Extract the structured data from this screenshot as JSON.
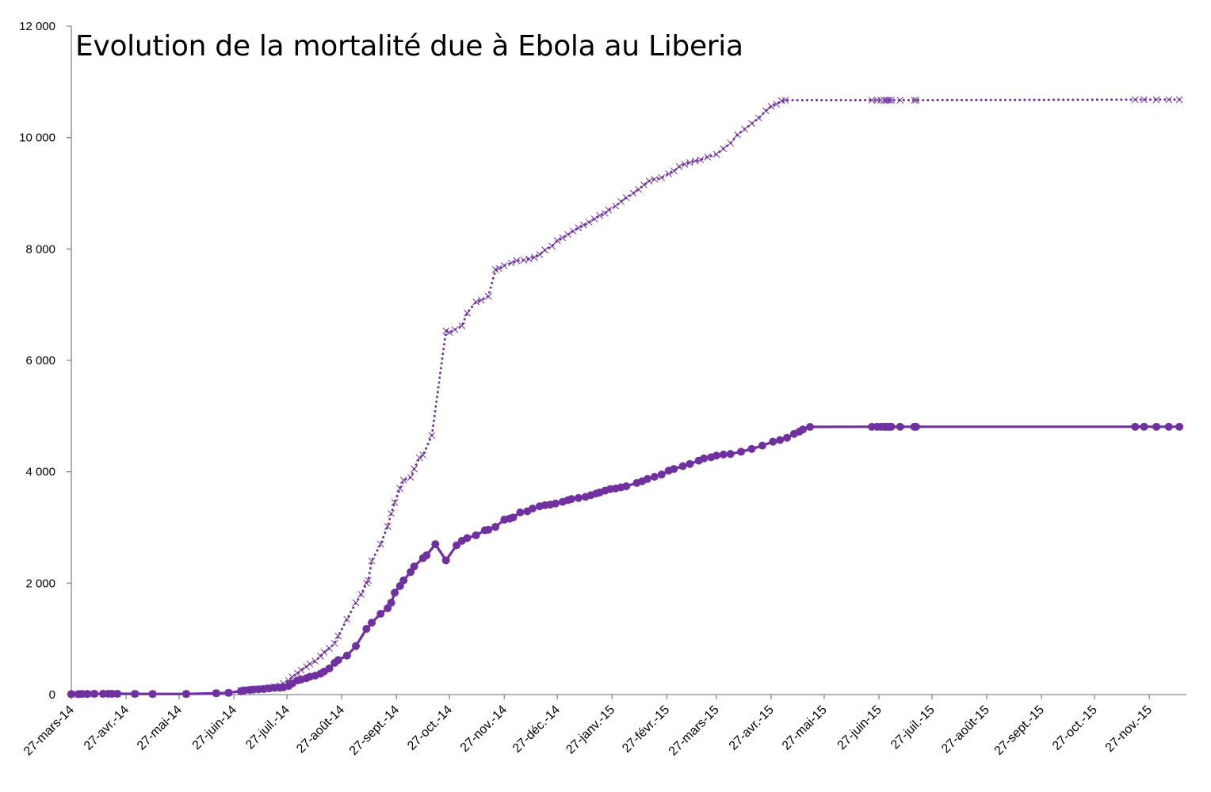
{
  "chart_data": {
    "type": "line",
    "title": "Evolution de la mortalité due à Ebola au Liberia",
    "xlabel": "",
    "ylabel": "",
    "ylim": [
      0,
      12000
    ],
    "yticks": [
      0,
      2000,
      4000,
      6000,
      8000,
      10000,
      12000
    ],
    "ytick_labels": [
      "0",
      "2 000",
      "4 000",
      "6 000",
      "8 000",
      "10 000",
      "12 000"
    ],
    "xlim": [
      "2014-03-27",
      "2015-12-18"
    ],
    "xticks": [
      "2014-03-27",
      "2014-04-27",
      "2014-05-27",
      "2014-06-27",
      "2014-07-27",
      "2014-08-27",
      "2014-09-27",
      "2014-10-27",
      "2014-11-27",
      "2014-12-27",
      "2015-01-27",
      "2015-02-27",
      "2015-03-27",
      "2015-04-27",
      "2015-05-27",
      "2015-06-27",
      "2015-07-27",
      "2015-08-27",
      "2015-09-27",
      "2015-10-27",
      "2015-11-27"
    ],
    "xtick_labels": [
      "27-mars-14",
      "27-avr.-14",
      "27-mai-14",
      "27-juin-14",
      "27-juil.-14",
      "27-août-14",
      "27-sept.-14",
      "27-oct.-14",
      "27-nov.-14",
      "27-déc.-14",
      "27-janv.-15",
      "27-févr.-15",
      "27-mars-15",
      "27-avr.-15",
      "27-mai-15",
      "27-juin-15",
      "27-juil.-15",
      "27-août-15",
      "27-sept.-15",
      "27-oct.-15",
      "27-nov.-15"
    ],
    "grid": false,
    "legend": "none",
    "series": [
      {
        "style": "dotted-x",
        "color": "#7030A0",
        "points": [
          [
            "2014-03-27",
            8
          ],
          [
            "2014-03-31",
            8
          ],
          [
            "2014-04-02",
            12
          ],
          [
            "2014-04-05",
            12
          ],
          [
            "2014-04-09",
            14
          ],
          [
            "2014-04-14",
            14
          ],
          [
            "2014-04-17",
            15
          ],
          [
            "2014-04-19",
            15
          ],
          [
            "2014-04-22",
            15
          ],
          [
            "2014-05-02",
            13
          ],
          [
            "2014-05-12",
            11
          ],
          [
            "2014-05-31",
            12
          ],
          [
            "2014-06-17",
            24
          ],
          [
            "2014-06-24",
            32
          ],
          [
            "2014-07-01",
            75
          ],
          [
            "2014-07-03",
            86
          ],
          [
            "2014-07-06",
            90
          ],
          [
            "2014-07-08",
            100
          ],
          [
            "2014-07-11",
            105
          ],
          [
            "2014-07-14",
            120
          ],
          [
            "2014-07-17",
            130
          ],
          [
            "2014-07-20",
            140
          ],
          [
            "2014-07-23",
            160
          ],
          [
            "2014-07-25",
            200
          ],
          [
            "2014-07-28",
            250
          ],
          [
            "2014-07-30",
            320
          ],
          [
            "2014-08-02",
            380
          ],
          [
            "2014-08-04",
            440
          ],
          [
            "2014-08-07",
            500
          ],
          [
            "2014-08-09",
            550
          ],
          [
            "2014-08-12",
            600
          ],
          [
            "2014-08-15",
            690
          ],
          [
            "2014-08-17",
            760
          ],
          [
            "2014-08-20",
            830
          ],
          [
            "2014-08-23",
            920
          ],
          [
            "2014-08-25",
            1050
          ],
          [
            "2014-08-30",
            1350
          ],
          [
            "2014-09-04",
            1650
          ],
          [
            "2014-09-07",
            1800
          ],
          [
            "2014-09-10",
            2000
          ],
          [
            "2014-09-11",
            2050
          ],
          [
            "2014-09-13",
            2400
          ],
          [
            "2014-09-18",
            2700
          ],
          [
            "2014-09-22",
            3020
          ],
          [
            "2014-09-24",
            3250
          ],
          [
            "2014-09-26",
            3450
          ],
          [
            "2014-09-29",
            3700
          ],
          [
            "2014-10-01",
            3850
          ],
          [
            "2014-10-05",
            3900
          ],
          [
            "2014-10-07",
            4050
          ],
          [
            "2014-10-10",
            4250
          ],
          [
            "2014-10-12",
            4300
          ],
          [
            "2014-10-17",
            4650
          ],
          [
            "2014-10-25",
            6530
          ],
          [
            "2014-10-27",
            6500
          ],
          [
            "2014-10-30",
            6550
          ],
          [
            "2014-11-03",
            6620
          ],
          [
            "2014-11-06",
            6850
          ],
          [
            "2014-11-11",
            7050
          ],
          [
            "2014-11-14",
            7080
          ],
          [
            "2014-11-18",
            7150
          ],
          [
            "2014-11-22",
            7630
          ],
          [
            "2014-11-24",
            7650
          ],
          [
            "2014-11-27",
            7700
          ],
          [
            "2014-12-01",
            7750
          ],
          [
            "2014-12-04",
            7790
          ],
          [
            "2014-12-08",
            7800
          ],
          [
            "2014-12-11",
            7820
          ],
          [
            "2014-12-14",
            7850
          ],
          [
            "2014-12-17",
            7900
          ],
          [
            "2014-12-20",
            7980
          ],
          [
            "2014-12-24",
            8050
          ],
          [
            "2014-12-27",
            8150
          ],
          [
            "2014-12-30",
            8200
          ],
          [
            "2015-01-02",
            8260
          ],
          [
            "2015-01-05",
            8320
          ],
          [
            "2015-01-08",
            8380
          ],
          [
            "2015-01-11",
            8430
          ],
          [
            "2015-01-14",
            8480
          ],
          [
            "2015-01-17",
            8540
          ],
          [
            "2015-01-20",
            8600
          ],
          [
            "2015-01-23",
            8640
          ],
          [
            "2015-01-25",
            8700
          ],
          [
            "2015-01-29",
            8770
          ],
          [
            "2015-02-01",
            8850
          ],
          [
            "2015-02-04",
            8920
          ],
          [
            "2015-02-08",
            9000
          ],
          [
            "2015-02-11",
            9070
          ],
          [
            "2015-02-14",
            9150
          ],
          [
            "2015-02-17",
            9220
          ],
          [
            "2015-02-20",
            9250
          ],
          [
            "2015-02-24",
            9280
          ],
          [
            "2015-02-28",
            9350
          ],
          [
            "2015-03-03",
            9400
          ],
          [
            "2015-03-06",
            9480
          ],
          [
            "2015-03-09",
            9520
          ],
          [
            "2015-03-12",
            9550
          ],
          [
            "2015-03-15",
            9580
          ],
          [
            "2015-03-18",
            9600
          ],
          [
            "2015-03-22",
            9650
          ],
          [
            "2015-03-27",
            9700
          ],
          [
            "2015-03-31",
            9800
          ],
          [
            "2015-04-04",
            9900
          ],
          [
            "2015-04-08",
            10050
          ],
          [
            "2015-04-12",
            10150
          ],
          [
            "2015-04-16",
            10250
          ],
          [
            "2015-04-20",
            10350
          ],
          [
            "2015-04-24",
            10480
          ],
          [
            "2015-04-27",
            10560
          ],
          [
            "2015-04-30",
            10600
          ],
          [
            "2015-05-03",
            10660
          ],
          [
            "2015-05-05",
            10670
          ],
          [
            "2015-06-23",
            10670
          ],
          [
            "2015-06-26",
            10670
          ],
          [
            "2015-06-28",
            10670
          ],
          [
            "2015-06-30",
            10670
          ],
          [
            "2015-07-01",
            10670
          ],
          [
            "2015-07-02",
            10670
          ],
          [
            "2015-07-03",
            10670
          ],
          [
            "2015-07-04",
            10670
          ],
          [
            "2015-07-09",
            10670
          ],
          [
            "2015-07-17",
            10670
          ],
          [
            "2015-07-18",
            10670
          ],
          [
            "2015-11-19",
            10680
          ],
          [
            "2015-11-24",
            10680
          ],
          [
            "2015-12-01",
            10680
          ],
          [
            "2015-12-08",
            10680
          ],
          [
            "2015-12-14",
            10680
          ]
        ]
      },
      {
        "style": "solid-circle",
        "color": "#7030A0",
        "points": [
          [
            "2014-03-27",
            8
          ],
          [
            "2014-03-31",
            8
          ],
          [
            "2014-04-02",
            12
          ],
          [
            "2014-04-05",
            12
          ],
          [
            "2014-04-09",
            14
          ],
          [
            "2014-04-14",
            14
          ],
          [
            "2014-04-17",
            15
          ],
          [
            "2014-04-19",
            15
          ],
          [
            "2014-04-22",
            15
          ],
          [
            "2014-05-02",
            13
          ],
          [
            "2014-05-12",
            11
          ],
          [
            "2014-05-31",
            12
          ],
          [
            "2014-06-17",
            24
          ],
          [
            "2014-06-24",
            32
          ],
          [
            "2014-07-01",
            60
          ],
          [
            "2014-07-03",
            75
          ],
          [
            "2014-07-06",
            84
          ],
          [
            "2014-07-08",
            90
          ],
          [
            "2014-07-11",
            95
          ],
          [
            "2014-07-14",
            100
          ],
          [
            "2014-07-17",
            110
          ],
          [
            "2014-07-20",
            120
          ],
          [
            "2014-07-23",
            125
          ],
          [
            "2014-07-25",
            130
          ],
          [
            "2014-07-28",
            155
          ],
          [
            "2014-07-30",
            200
          ],
          [
            "2014-08-02",
            255
          ],
          [
            "2014-08-04",
            270
          ],
          [
            "2014-08-07",
            295
          ],
          [
            "2014-08-09",
            320
          ],
          [
            "2014-08-12",
            340
          ],
          [
            "2014-08-15",
            375
          ],
          [
            "2014-08-17",
            413
          ],
          [
            "2014-08-20",
            470
          ],
          [
            "2014-08-23",
            570
          ],
          [
            "2014-08-25",
            620
          ],
          [
            "2014-08-30",
            700
          ],
          [
            "2014-09-04",
            870
          ],
          [
            "2014-09-10",
            1180
          ],
          [
            "2014-09-13",
            1290
          ],
          [
            "2014-09-18",
            1450
          ],
          [
            "2014-09-22",
            1550
          ],
          [
            "2014-09-24",
            1650
          ],
          [
            "2014-09-26",
            1830
          ],
          [
            "2014-09-29",
            1950
          ],
          [
            "2014-10-01",
            2050
          ],
          [
            "2014-10-05",
            2200
          ],
          [
            "2014-10-07",
            2300
          ],
          [
            "2014-10-12",
            2450
          ],
          [
            "2014-10-14",
            2500
          ],
          [
            "2014-10-19",
            2700
          ],
          [
            "2014-10-25",
            2410
          ],
          [
            "2014-10-31",
            2680
          ],
          [
            "2014-11-03",
            2760
          ],
          [
            "2014-11-06",
            2810
          ],
          [
            "2014-11-11",
            2860
          ],
          [
            "2014-11-16",
            2950
          ],
          [
            "2014-11-18",
            2960
          ],
          [
            "2014-11-22",
            3010
          ],
          [
            "2014-11-27",
            3140
          ],
          [
            "2014-11-30",
            3160
          ],
          [
            "2014-12-02",
            3180
          ],
          [
            "2014-12-06",
            3270
          ],
          [
            "2014-12-10",
            3290
          ],
          [
            "2014-12-13",
            3340
          ],
          [
            "2014-12-17",
            3380
          ],
          [
            "2014-12-20",
            3400
          ],
          [
            "2014-12-23",
            3410
          ],
          [
            "2014-12-26",
            3430
          ],
          [
            "2014-12-30",
            3460
          ],
          [
            "2015-01-02",
            3490
          ],
          [
            "2015-01-04",
            3510
          ],
          [
            "2015-01-08",
            3530
          ],
          [
            "2015-01-12",
            3550
          ],
          [
            "2015-01-15",
            3580
          ],
          [
            "2015-01-18",
            3610
          ],
          [
            "2015-01-20",
            3630
          ],
          [
            "2015-01-23",
            3660
          ],
          [
            "2015-01-26",
            3690
          ],
          [
            "2015-01-29",
            3700
          ],
          [
            "2015-02-01",
            3720
          ],
          [
            "2015-02-04",
            3740
          ],
          [
            "2015-02-10",
            3800
          ],
          [
            "2015-02-13",
            3830
          ],
          [
            "2015-02-16",
            3870
          ],
          [
            "2015-02-20",
            3910
          ],
          [
            "2015-02-24",
            3950
          ],
          [
            "2015-02-28",
            4020
          ],
          [
            "2015-03-03",
            4050
          ],
          [
            "2015-03-08",
            4100
          ],
          [
            "2015-03-12",
            4140
          ],
          [
            "2015-03-17",
            4200
          ],
          [
            "2015-03-20",
            4240
          ],
          [
            "2015-03-24",
            4260
          ],
          [
            "2015-03-27",
            4290
          ],
          [
            "2015-03-31",
            4310
          ],
          [
            "2015-04-04",
            4320
          ],
          [
            "2015-04-10",
            4360
          ],
          [
            "2015-04-16",
            4410
          ],
          [
            "2015-04-22",
            4470
          ],
          [
            "2015-04-28",
            4540
          ],
          [
            "2015-05-02",
            4570
          ],
          [
            "2015-05-06",
            4610
          ],
          [
            "2015-05-10",
            4680
          ],
          [
            "2015-05-13",
            4720
          ],
          [
            "2015-05-15",
            4760
          ],
          [
            "2015-05-19",
            4806
          ],
          [
            "2015-06-23",
            4808
          ],
          [
            "2015-06-26",
            4808
          ],
          [
            "2015-06-28",
            4808
          ],
          [
            "2015-06-30",
            4808
          ],
          [
            "2015-07-01",
            4808
          ],
          [
            "2015-07-02",
            4808
          ],
          [
            "2015-07-03",
            4808
          ],
          [
            "2015-07-04",
            4808
          ],
          [
            "2015-07-09",
            4808
          ],
          [
            "2015-07-17",
            4808
          ],
          [
            "2015-07-18",
            4808
          ],
          [
            "2015-11-19",
            4808
          ],
          [
            "2015-11-24",
            4808
          ],
          [
            "2015-12-01",
            4808
          ],
          [
            "2015-12-08",
            4808
          ],
          [
            "2015-12-14",
            4808
          ]
        ]
      }
    ]
  }
}
